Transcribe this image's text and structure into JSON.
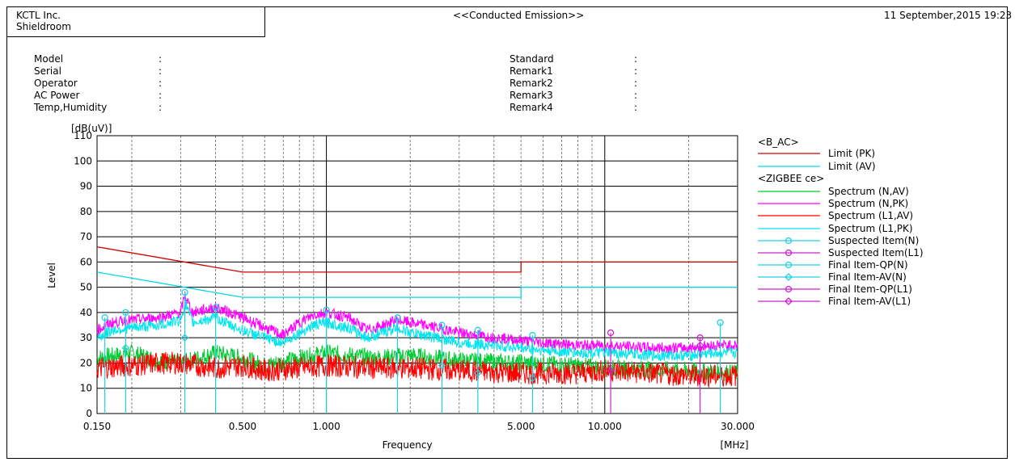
{
  "header": {
    "company": "KCTL Inc.",
    "location": "Shieldroom",
    "title": "<<Conducted Emission>>",
    "datetime": "11 September,2015 19:23"
  },
  "info_left": [
    {
      "label": "Model",
      "sep": ":"
    },
    {
      "label": "Serial",
      "sep": ":"
    },
    {
      "label": "Operator",
      "sep": ":"
    },
    {
      "label": "AC Power",
      "sep": ":"
    },
    {
      "label": "Temp,Humidity",
      "sep": ":"
    }
  ],
  "info_right": [
    {
      "label": "Standard",
      "sep": ":"
    },
    {
      "label": "Remark1",
      "sep": ":"
    },
    {
      "label": "Remark2",
      "sep": ":"
    },
    {
      "label": "Remark3",
      "sep": ":"
    },
    {
      "label": "Remark4",
      "sep": ":"
    }
  ],
  "colors": {
    "limit_pk": "#d00000",
    "limit_av": "#00d8e8",
    "n_av": "#00cc33",
    "n_pk": "#ff00ff",
    "l1_av": "#ff0000",
    "l1_pk": "#00e5ee",
    "susp_n": "#20d0e0",
    "susp_l1": "#d020d0",
    "grid": "#000000",
    "minor_grid": "#666666"
  },
  "chart_data": {
    "type": "line",
    "xscale": "log",
    "ylabel_unit": "[dB(uV)]",
    "ylabel": "Level",
    "xlabel": "Frequency",
    "xunit": "[MHz]",
    "xlim": [
      0.15,
      30
    ],
    "ylim": [
      0,
      110
    ],
    "yticks": [
      0,
      10,
      20,
      30,
      40,
      50,
      60,
      70,
      80,
      90,
      100,
      110
    ],
    "xticks": [
      {
        "v": 0.15,
        "label": "0.150"
      },
      {
        "v": 0.5,
        "label": "0.500"
      },
      {
        "v": 1.0,
        "label": "1.000"
      },
      {
        "v": 5.0,
        "label": "5.000"
      },
      {
        "v": 10.0,
        "label": "10.000"
      },
      {
        "v": 30.0,
        "label": "30.000"
      }
    ],
    "legend": {
      "group1": "<B_AC>",
      "group2": "<ZIGBEE ce>",
      "items": [
        {
          "label": "Limit (PK)",
          "key": "limit_pk",
          "group": 1,
          "marker": "none"
        },
        {
          "label": "Limit (AV)",
          "key": "limit_av",
          "group": 1,
          "marker": "none"
        },
        {
          "label": "Spectrum (N,AV)",
          "key": "n_av",
          "group": 2,
          "marker": "none"
        },
        {
          "label": "Spectrum (N,PK)",
          "key": "n_pk",
          "group": 2,
          "marker": "none"
        },
        {
          "label": "Spectrum (L1,AV)",
          "key": "l1_av",
          "group": 2,
          "marker": "none"
        },
        {
          "label": "Spectrum (L1,PK)",
          "key": "l1_pk",
          "group": 2,
          "marker": "none"
        },
        {
          "label": "Suspected Item(N)",
          "key": "susp_n",
          "group": 2,
          "marker": "circle"
        },
        {
          "label": "Suspected Item(L1)",
          "key": "susp_l1",
          "group": 2,
          "marker": "circle"
        },
        {
          "label": "Final Item-QP(N)",
          "key": "susp_n",
          "group": 2,
          "marker": "circle"
        },
        {
          "label": "Final Item-AV(N)",
          "key": "susp_n",
          "group": 2,
          "marker": "diamond"
        },
        {
          "label": "Final Item-QP(L1)",
          "key": "susp_l1",
          "group": 2,
          "marker": "circle"
        },
        {
          "label": "Final Item-AV(L1)",
          "key": "susp_l1",
          "group": 2,
          "marker": "diamond"
        }
      ]
    },
    "limits": {
      "pk": [
        [
          0.15,
          66
        ],
        [
          0.5,
          56
        ],
        [
          5,
          56
        ],
        [
          5,
          60
        ],
        [
          30,
          60
        ]
      ],
      "av": [
        [
          0.15,
          56
        ],
        [
          0.5,
          46
        ],
        [
          5,
          46
        ],
        [
          5,
          50
        ],
        [
          30,
          50
        ]
      ]
    },
    "series": [
      {
        "key": "n_pk",
        "points": [
          [
            0.15,
            33
          ],
          [
            0.17,
            36
          ],
          [
            0.2,
            37
          ],
          [
            0.25,
            38
          ],
          [
            0.3,
            40
          ],
          [
            0.31,
            47
          ],
          [
            0.33,
            40
          ],
          [
            0.4,
            42
          ],
          [
            0.45,
            40
          ],
          [
            0.5,
            38
          ],
          [
            0.6,
            34
          ],
          [
            0.7,
            31
          ],
          [
            0.8,
            36
          ],
          [
            0.9,
            39
          ],
          [
            1.0,
            40
          ],
          [
            1.2,
            38
          ],
          [
            1.4,
            33
          ],
          [
            1.6,
            35
          ],
          [
            1.8,
            37
          ],
          [
            2.0,
            36
          ],
          [
            2.5,
            34
          ],
          [
            3.0,
            32
          ],
          [
            4.0,
            30
          ],
          [
            5.0,
            29
          ],
          [
            6.0,
            28
          ],
          [
            8.0,
            27
          ],
          [
            10.0,
            27
          ],
          [
            15.0,
            26
          ],
          [
            20.0,
            26
          ],
          [
            25.0,
            27
          ],
          [
            30.0,
            27
          ]
        ]
      },
      {
        "key": "l1_pk",
        "points": [
          [
            0.15,
            30
          ],
          [
            0.17,
            33
          ],
          [
            0.2,
            34
          ],
          [
            0.25,
            35
          ],
          [
            0.3,
            37
          ],
          [
            0.31,
            44
          ],
          [
            0.33,
            36
          ],
          [
            0.4,
            38
          ],
          [
            0.45,
            35
          ],
          [
            0.5,
            33
          ],
          [
            0.6,
            30
          ],
          [
            0.7,
            28
          ],
          [
            0.8,
            32
          ],
          [
            0.9,
            35
          ],
          [
            1.0,
            36
          ],
          [
            1.2,
            34
          ],
          [
            1.4,
            30
          ],
          [
            1.6,
            32
          ],
          [
            1.8,
            34
          ],
          [
            2.0,
            32
          ],
          [
            2.5,
            30
          ],
          [
            3.0,
            28
          ],
          [
            4.0,
            27
          ],
          [
            5.0,
            26
          ],
          [
            6.0,
            25
          ],
          [
            8.0,
            24
          ],
          [
            10.0,
            24
          ],
          [
            15.0,
            23
          ],
          [
            20.0,
            23
          ],
          [
            25.0,
            24
          ],
          [
            30.0,
            24
          ]
        ]
      },
      {
        "key": "n_av",
        "points": [
          [
            0.15,
            22
          ],
          [
            0.2,
            24
          ],
          [
            0.25,
            21
          ],
          [
            0.3,
            20
          ],
          [
            0.4,
            24
          ],
          [
            0.5,
            22
          ],
          [
            0.6,
            19
          ],
          [
            0.8,
            22
          ],
          [
            1.0,
            24
          ],
          [
            1.5,
            22
          ],
          [
            2.0,
            23
          ],
          [
            3.0,
            21
          ],
          [
            5.0,
            20
          ],
          [
            8.0,
            19
          ],
          [
            10.0,
            18
          ],
          [
            20.0,
            17
          ],
          [
            30.0,
            16
          ]
        ]
      },
      {
        "key": "l1_av",
        "points": [
          [
            0.15,
            18
          ],
          [
            0.2,
            19
          ],
          [
            0.25,
            20
          ],
          [
            0.3,
            20
          ],
          [
            0.4,
            18
          ],
          [
            0.5,
            19
          ],
          [
            0.6,
            17
          ],
          [
            0.8,
            18
          ],
          [
            1.0,
            19
          ],
          [
            1.5,
            18
          ],
          [
            2.0,
            18
          ],
          [
            3.0,
            17
          ],
          [
            5.0,
            16
          ],
          [
            8.0,
            16
          ],
          [
            10.0,
            17
          ],
          [
            20.0,
            15
          ],
          [
            30.0,
            15
          ]
        ]
      }
    ],
    "suspected_n": [
      [
        0.16,
        38
      ],
      [
        0.19,
        40
      ],
      [
        0.31,
        48
      ],
      [
        0.4,
        42
      ],
      [
        1.0,
        41
      ],
      [
        1.8,
        38
      ],
      [
        2.6,
        35
      ],
      [
        3.5,
        33
      ],
      [
        5.5,
        31
      ],
      [
        26.0,
        36
      ]
    ],
    "suspected_l1": [
      [
        10.5,
        32
      ],
      [
        22.0,
        30
      ]
    ],
    "final_av_n": [
      [
        0.19,
        26
      ],
      [
        0.31,
        30
      ],
      [
        2.6,
        19
      ],
      [
        3.5,
        16
      ],
      [
        5.5,
        14
      ]
    ],
    "final_av_l1": [
      [
        10.5,
        17
      ],
      [
        22.0,
        27
      ]
    ]
  }
}
